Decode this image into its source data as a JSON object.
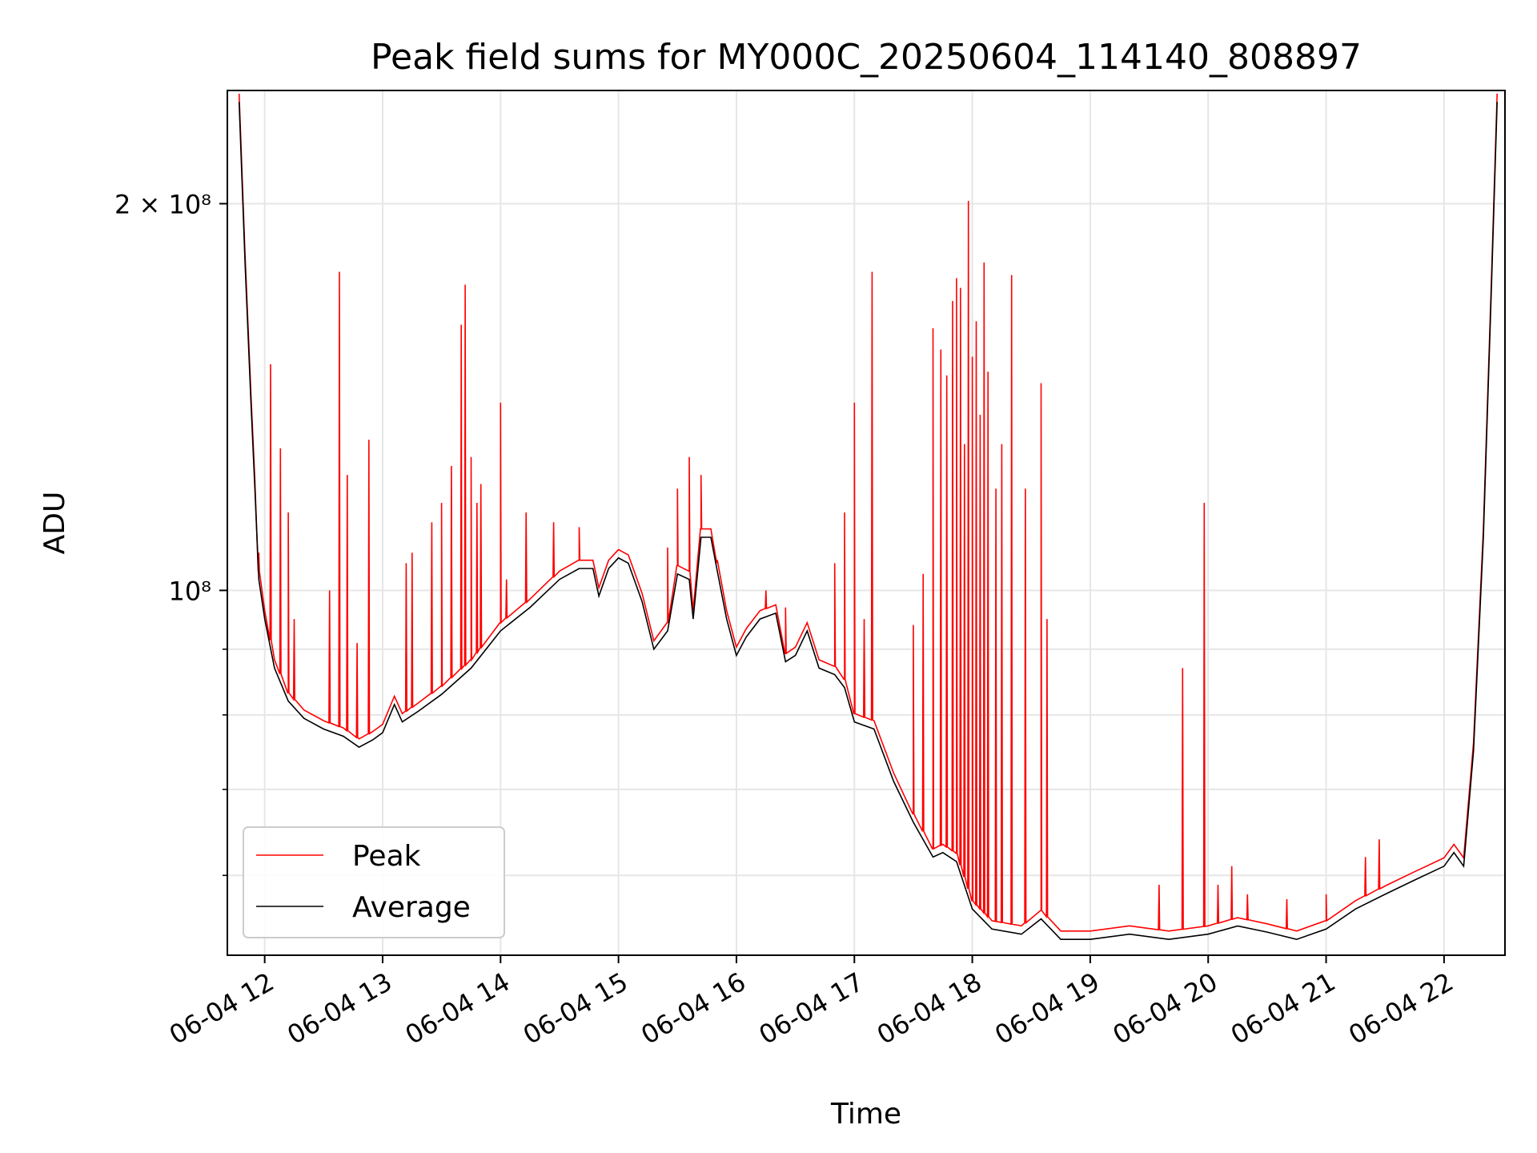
{
  "chart_data": {
    "type": "line",
    "title": "Peak field sums for MY000C_20250604_114140_808897",
    "xlabel": "Time",
    "ylabel": "ADU",
    "y_scale": "log",
    "grid": true,
    "legend_position": "lower-left",
    "colors": {
      "Peak": "#ff0000",
      "Average": "#000000"
    },
    "xlim": [
      "2025-06-04 11:41",
      "2025-06-04 22:31"
    ],
    "ylim": [
      52000000,
      245000000
    ],
    "x_ticks": [
      {
        "t": "2025-06-04 12:00",
        "label": "06-04 12"
      },
      {
        "t": "2025-06-04 13:00",
        "label": "06-04 13"
      },
      {
        "t": "2025-06-04 14:00",
        "label": "06-04 14"
      },
      {
        "t": "2025-06-04 15:00",
        "label": "06-04 15"
      },
      {
        "t": "2025-06-04 16:00",
        "label": "06-04 16"
      },
      {
        "t": "2025-06-04 17:00",
        "label": "06-04 17"
      },
      {
        "t": "2025-06-04 18:00",
        "label": "06-04 18"
      },
      {
        "t": "2025-06-04 19:00",
        "label": "06-04 19"
      },
      {
        "t": "2025-06-04 20:00",
        "label": "06-04 20"
      },
      {
        "t": "2025-06-04 21:00",
        "label": "06-04 21"
      },
      {
        "t": "2025-06-04 22:00",
        "label": "06-04 22"
      }
    ],
    "y_major_ticks": [
      {
        "v": 100000000,
        "label": "10⁸"
      },
      {
        "v": 200000000,
        "label": "2 × 10⁸"
      }
    ],
    "y_minor_ticks": [
      60000000,
      70000000,
      80000000,
      90000000
    ],
    "series": [
      {
        "name": "Average",
        "points": [
          [
            "2025-06-04 11:47",
            240000000
          ],
          [
            "2025-06-04 11:50",
            180000000
          ],
          [
            "2025-06-04 11:53",
            140000000
          ],
          [
            "2025-06-04 11:55",
            120000000
          ],
          [
            "2025-06-04 11:57",
            102000000
          ],
          [
            "2025-06-04 12:00",
            95000000
          ],
          [
            "2025-06-04 12:05",
            87000000
          ],
          [
            "2025-06-04 12:12",
            82000000
          ],
          [
            "2025-06-04 12:20",
            79500000
          ],
          [
            "2025-06-04 12:30",
            78000000
          ],
          [
            "2025-06-04 12:40",
            77000000
          ],
          [
            "2025-06-04 12:48",
            75500000
          ],
          [
            "2025-06-04 12:55",
            76500000
          ],
          [
            "2025-06-04 13:00",
            77500000
          ],
          [
            "2025-06-04 13:06",
            81500000
          ],
          [
            "2025-06-04 13:10",
            79000000
          ],
          [
            "2025-06-04 13:18",
            80500000
          ],
          [
            "2025-06-04 13:30",
            83000000
          ],
          [
            "2025-06-04 13:45",
            87000000
          ],
          [
            "2025-06-04 14:00",
            93000000
          ],
          [
            "2025-06-04 14:15",
            97000000
          ],
          [
            "2025-06-04 14:30",
            102000000
          ],
          [
            "2025-06-04 14:40",
            104000000
          ],
          [
            "2025-06-04 14:47",
            104000000
          ],
          [
            "2025-06-04 14:50",
            99000000
          ],
          [
            "2025-06-04 14:55",
            104000000
          ],
          [
            "2025-06-04 15:00",
            106000000
          ],
          [
            "2025-06-04 15:05",
            105000000
          ],
          [
            "2025-06-04 15:12",
            98000000
          ],
          [
            "2025-06-04 15:18",
            90000000
          ],
          [
            "2025-06-04 15:25",
            93000000
          ],
          [
            "2025-06-04 15:30",
            103000000
          ],
          [
            "2025-06-04 15:36",
            102000000
          ],
          [
            "2025-06-04 15:38",
            95000000
          ],
          [
            "2025-06-04 15:42",
            110000000
          ],
          [
            "2025-06-04 15:47",
            110000000
          ],
          [
            "2025-06-04 15:50",
            104000000
          ],
          [
            "2025-06-04 15:55",
            95000000
          ],
          [
            "2025-06-04 16:00",
            89000000
          ],
          [
            "2025-06-04 16:05",
            92000000
          ],
          [
            "2025-06-04 16:12",
            95000000
          ],
          [
            "2025-06-04 16:20",
            96000000
          ],
          [
            "2025-06-04 16:25",
            88000000
          ],
          [
            "2025-06-04 16:30",
            89000000
          ],
          [
            "2025-06-04 16:36",
            93000000
          ],
          [
            "2025-06-04 16:42",
            87000000
          ],
          [
            "2025-06-04 16:50",
            86000000
          ],
          [
            "2025-06-04 16:55",
            84000000
          ],
          [
            "2025-06-04 17:00",
            79000000
          ],
          [
            "2025-06-04 17:10",
            78000000
          ],
          [
            "2025-06-04 17:20",
            71000000
          ],
          [
            "2025-06-04 17:30",
            66000000
          ],
          [
            "2025-06-04 17:40",
            62000000
          ],
          [
            "2025-06-04 17:45",
            62500000
          ],
          [
            "2025-06-04 17:52",
            61500000
          ],
          [
            "2025-06-04 18:00",
            56500000
          ],
          [
            "2025-06-04 18:10",
            54500000
          ],
          [
            "2025-06-04 18:25",
            54000000
          ],
          [
            "2025-06-04 18:35",
            55500000
          ],
          [
            "2025-06-04 18:45",
            53500000
          ],
          [
            "2025-06-04 19:00",
            53500000
          ],
          [
            "2025-06-04 19:20",
            54000000
          ],
          [
            "2025-06-04 19:40",
            53500000
          ],
          [
            "2025-06-04 20:00",
            54000000
          ],
          [
            "2025-06-04 20:15",
            54800000
          ],
          [
            "2025-06-04 20:30",
            54200000
          ],
          [
            "2025-06-04 20:45",
            53500000
          ],
          [
            "2025-06-04 21:00",
            54500000
          ],
          [
            "2025-06-04 21:15",
            56500000
          ],
          [
            "2025-06-04 21:30",
            58000000
          ],
          [
            "2025-06-04 21:45",
            59500000
          ],
          [
            "2025-06-04 22:00",
            61000000
          ],
          [
            "2025-06-04 22:05",
            62500000
          ],
          [
            "2025-06-04 22:10",
            61000000
          ],
          [
            "2025-06-04 22:15",
            75000000
          ],
          [
            "2025-06-04 22:20",
            110000000
          ],
          [
            "2025-06-04 22:24",
            170000000
          ],
          [
            "2025-06-04 22:27",
            240000000
          ]
        ]
      },
      {
        "name": "Peak",
        "spikes": [
          [
            "2025-06-04 11:57",
            107000000
          ],
          [
            "2025-06-04 12:03",
            150000000
          ],
          [
            "2025-06-04 12:08",
            129000000
          ],
          [
            "2025-06-04 12:12",
            115000000
          ],
          [
            "2025-06-04 12:15",
            95000000
          ],
          [
            "2025-06-04 12:33",
            100000000
          ],
          [
            "2025-06-04 12:38",
            177000000
          ],
          [
            "2025-06-04 12:42",
            123000000
          ],
          [
            "2025-06-04 12:47",
            91000000
          ],
          [
            "2025-06-04 12:53",
            131000000
          ],
          [
            "2025-06-04 13:12",
            105000000
          ],
          [
            "2025-06-04 13:15",
            107000000
          ],
          [
            "2025-06-04 13:25",
            113000000
          ],
          [
            "2025-06-04 13:30",
            117000000
          ],
          [
            "2025-06-04 13:35",
            125000000
          ],
          [
            "2025-06-04 13:40",
            161000000
          ],
          [
            "2025-06-04 13:42",
            173000000
          ],
          [
            "2025-06-04 13:45",
            127000000
          ],
          [
            "2025-06-04 13:48",
            117000000
          ],
          [
            "2025-06-04 13:50",
            121000000
          ],
          [
            "2025-06-04 14:00",
            140000000
          ],
          [
            "2025-06-04 14:03",
            102000000
          ],
          [
            "2025-06-04 14:13",
            115000000
          ],
          [
            "2025-06-04 14:27",
            113000000
          ],
          [
            "2025-06-04 14:40",
            112000000
          ],
          [
            "2025-06-04 15:25",
            108000000
          ],
          [
            "2025-06-04 15:30",
            120000000
          ],
          [
            "2025-06-04 15:36",
            127000000
          ],
          [
            "2025-06-04 15:42",
            123000000
          ],
          [
            "2025-06-04 15:50",
            105000000
          ],
          [
            "2025-06-04 16:15",
            100000000
          ],
          [
            "2025-06-04 16:25",
            97000000
          ],
          [
            "2025-06-04 16:50",
            105000000
          ],
          [
            "2025-06-04 16:55",
            115000000
          ],
          [
            "2025-06-04 17:00",
            140000000
          ],
          [
            "2025-06-04 17:05",
            95000000
          ],
          [
            "2025-06-04 17:09",
            177000000
          ],
          [
            "2025-06-04 17:30",
            94000000
          ],
          [
            "2025-06-04 17:35",
            103000000
          ],
          [
            "2025-06-04 17:40",
            160000000
          ],
          [
            "2025-06-04 17:44",
            154000000
          ],
          [
            "2025-06-04 17:47",
            147000000
          ],
          [
            "2025-06-04 17:50",
            168000000
          ],
          [
            "2025-06-04 17:52",
            175000000
          ],
          [
            "2025-06-04 17:54",
            172000000
          ],
          [
            "2025-06-04 17:56",
            130000000
          ],
          [
            "2025-06-04 17:58",
            201000000
          ],
          [
            "2025-06-04 18:00",
            152000000
          ],
          [
            "2025-06-04 18:02",
            162000000
          ],
          [
            "2025-06-04 18:04",
            137000000
          ],
          [
            "2025-06-04 18:06",
            180000000
          ],
          [
            "2025-06-04 18:08",
            148000000
          ],
          [
            "2025-06-04 18:12",
            120000000
          ],
          [
            "2025-06-04 18:15",
            130000000
          ],
          [
            "2025-06-04 18:20",
            176000000
          ],
          [
            "2025-06-04 18:27",
            120000000
          ],
          [
            "2025-06-04 18:35",
            145000000
          ],
          [
            "2025-06-04 18:38",
            95000000
          ],
          [
            "2025-06-04 19:35",
            59000000
          ],
          [
            "2025-06-04 19:47",
            87000000
          ],
          [
            "2025-06-04 19:58",
            117000000
          ],
          [
            "2025-06-04 20:05",
            59000000
          ],
          [
            "2025-06-04 20:12",
            61000000
          ],
          [
            "2025-06-04 20:20",
            58000000
          ],
          [
            "2025-06-04 20:40",
            57500000
          ],
          [
            "2025-06-04 21:00",
            58000000
          ],
          [
            "2025-06-04 21:20",
            62000000
          ],
          [
            "2025-06-04 21:27",
            64000000
          ]
        ]
      }
    ]
  }
}
